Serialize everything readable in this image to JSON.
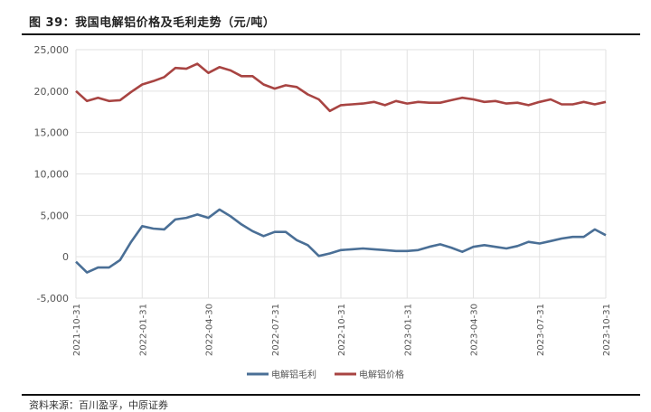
{
  "header": {
    "title": "图 39：我国电解铝价格及毛利走势（元/吨）"
  },
  "footer": {
    "source": "资料来源：百川盈孚，中原证券"
  },
  "colors": {
    "margin": "#4a6f96",
    "price": "#a84442",
    "grid": "#e2e2e2"
  },
  "legend": {
    "items": [
      {
        "label": "电解铝毛利",
        "color": "#4a6f96"
      },
      {
        "label": "电解铝价格",
        "color": "#a84442"
      }
    ]
  },
  "chart_data": {
    "type": "line",
    "title": "我国电解铝价格及毛利走势（元/吨）",
    "xlabel": "",
    "ylabel": "元/吨",
    "ylim": [
      -5000,
      25000
    ],
    "yticks": [
      -5000,
      0,
      5000,
      10000,
      15000,
      20000,
      25000
    ],
    "ytick_labels": [
      "-5,000",
      "0",
      "5,000",
      "10,000",
      "15,000",
      "20,000",
      "25,000"
    ],
    "xtick_labels": [
      "2021-10-31",
      "2022-01-31",
      "2022-04-30",
      "2022-07-31",
      "2022-10-31",
      "2023-01-31",
      "2023-04-30",
      "2023-07-31",
      "2023-10-31"
    ],
    "grid": true,
    "legend_position": "bottom",
    "x_months": [
      0,
      0.5,
      1,
      1.5,
      2,
      2.5,
      3,
      3.5,
      4,
      4.5,
      5,
      5.5,
      6,
      6.5,
      7,
      7.5,
      8,
      8.5,
      9,
      9.5,
      10,
      10.5,
      11,
      11.5,
      12,
      12.5,
      13,
      13.5,
      14,
      14.5,
      15,
      15.5,
      16,
      16.5,
      17,
      17.5,
      18,
      18.5,
      19,
      19.5,
      20,
      20.5,
      21,
      21.5,
      22,
      22.5,
      23,
      23.5,
      24
    ],
    "series": [
      {
        "name": "电解铝价格",
        "values": [
          20000,
          18800,
          19200,
          18800,
          18900,
          19900,
          20800,
          21200,
          21700,
          22800,
          22700,
          23300,
          22200,
          22900,
          22500,
          21800,
          21800,
          20800,
          20300,
          20700,
          20500,
          19600,
          19000,
          17600,
          18300,
          18400,
          18500,
          18700,
          18300,
          18800,
          18500,
          18700,
          18600,
          18600,
          18900,
          19200,
          19000,
          18700,
          18800,
          18500,
          18600,
          18300,
          18700,
          19000,
          18400,
          18400,
          18700,
          18400,
          18700
        ]
      },
      {
        "name": "电解铝毛利",
        "values": [
          -600,
          -1900,
          -1300,
          -1300,
          -400,
          1800,
          3700,
          3400,
          3300,
          4500,
          4700,
          5100,
          4700,
          5700,
          4900,
          3900,
          3100,
          2500,
          3000,
          3000,
          2000,
          1400,
          100,
          400,
          800,
          900,
          1000,
          900,
          800,
          700,
          700,
          800,
          1200,
          1500,
          1100,
          600,
          1200,
          1400,
          1200,
          1000,
          1300,
          1800,
          1600,
          1900,
          2200,
          2400,
          2400,
          3300,
          2600
        ]
      }
    ]
  }
}
